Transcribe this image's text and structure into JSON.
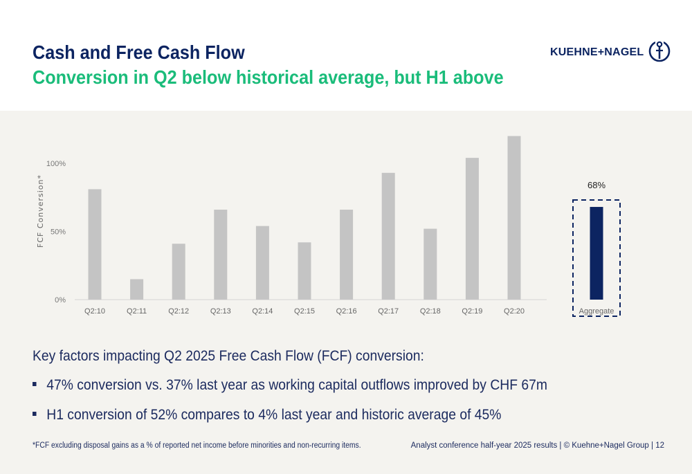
{
  "slide": {
    "title": "Cash and Free Cash Flow",
    "subtitle": "Conversion in Q2 below historical average, but H1 above",
    "logo_text": "KUEHNE+NAGEL",
    "intro": "Key factors impacting Q2 2025 Free Cash Flow (FCF) conversion:",
    "bullets": [
      "47% conversion vs. 37% last year as working capital outflows improved by CHF 67m",
      "H1 conversion of 52% compares to 4% last year and historic average of 45%"
    ],
    "footnote": "*FCF excluding disposal gains as a % of reported net income before minorities and non-recurring items.",
    "footer_right": "Analyst conference half-year 2025 results | © Kuehne+Nagel Group | 12"
  },
  "colors": {
    "navy": "#0c2461",
    "green": "#1abc7a",
    "bar_grey": "#c4c4c4",
    "aggregate": "#0c2461",
    "background": "#f4f3ef"
  },
  "icons": {
    "logo_mark": "anchor-figure-icon"
  },
  "chart_data": {
    "type": "bar",
    "ylabel": "FCF Conversion*",
    "ylim": [
      0,
      120
    ],
    "yticks": [
      0,
      50,
      100
    ],
    "ytick_labels": [
      "0%",
      "50%",
      "100%"
    ],
    "categories": [
      "Q2:10",
      "Q2:11",
      "Q2:12",
      "Q2:13",
      "Q2:14",
      "Q2:15",
      "Q2:16",
      "Q2:17",
      "Q2:18",
      "Q2:19",
      "Q2:20",
      "Aggregate"
    ],
    "values": [
      81,
      15,
      41,
      66,
      54,
      42,
      66,
      93,
      52,
      104,
      120,
      68
    ],
    "highlight": {
      "category": "Aggregate",
      "label": "68%",
      "box": "dashed"
    },
    "grid": false,
    "legend": "none"
  }
}
